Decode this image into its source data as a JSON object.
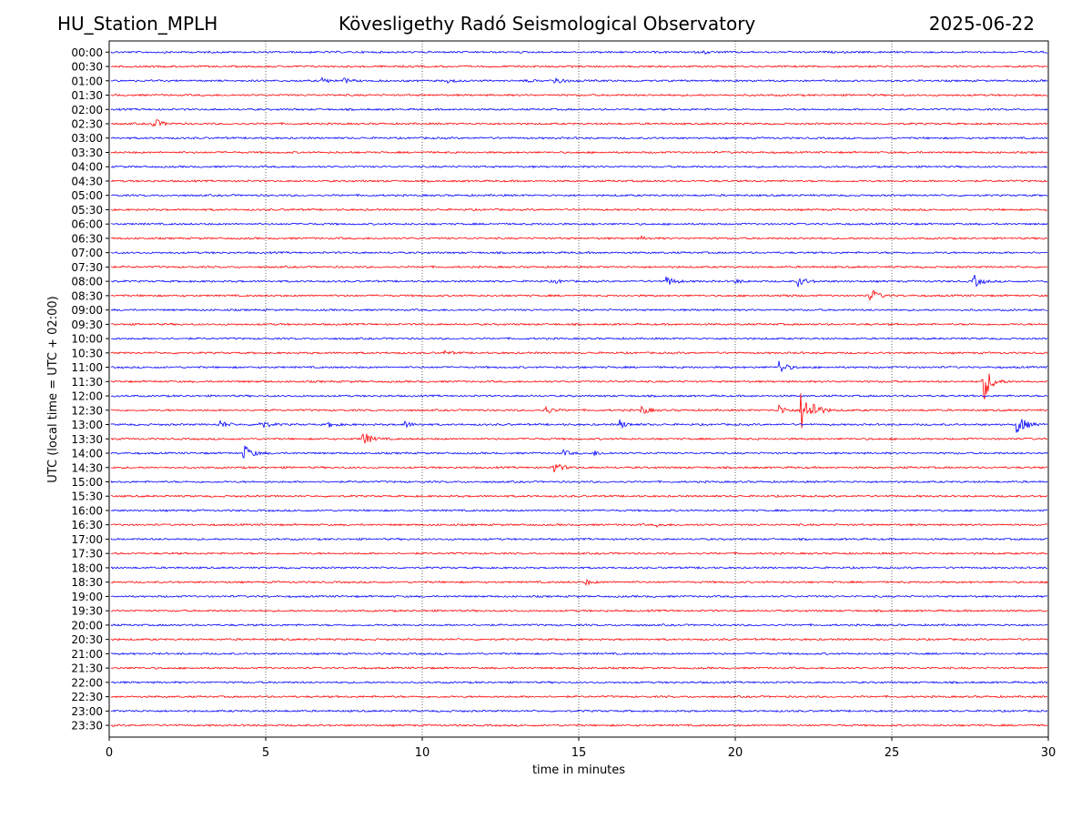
{
  "header": {
    "station": "HU_Station_MPLH",
    "observatory": "Kövesligethy Radó Seismological Observatory",
    "date": "2025-06-22"
  },
  "chart_data": {
    "type": "line",
    "title": "Kövesligethy Radó Seismological Observatory",
    "xlabel": "time in minutes",
    "ylabel": "UTC (local time = UTC + 02:00)",
    "xlim": [
      0,
      30
    ],
    "x_ticks": [
      0,
      5,
      10,
      15,
      20,
      25,
      30
    ],
    "vertical_gridlines_at": [
      5,
      10,
      15,
      20,
      25
    ],
    "grid": "vertical dotted",
    "row_labels": [
      "00:00",
      "00:30",
      "01:00",
      "01:30",
      "02:00",
      "02:30",
      "03:00",
      "03:30",
      "04:00",
      "04:30",
      "05:00",
      "05:30",
      "06:00",
      "06:30",
      "07:00",
      "07:30",
      "08:00",
      "08:30",
      "09:00",
      "09:30",
      "10:00",
      "10:30",
      "11:00",
      "11:30",
      "12:00",
      "12:30",
      "13:00",
      "13:30",
      "14:00",
      "14:30",
      "15:00",
      "15:30",
      "16:00",
      "16:30",
      "17:00",
      "17:30",
      "18:00",
      "18:30",
      "19:00",
      "19:30",
      "20:00",
      "20:30",
      "21:00",
      "21:30",
      "22:00",
      "22:30",
      "23:00",
      "23:30"
    ],
    "colors": [
      "#0000ff",
      "#ff0000"
    ],
    "events": [
      {
        "row": "00:00",
        "t": 19.0,
        "amp": 1.4
      },
      {
        "row": "01:00",
        "t": 6.8,
        "amp": 3
      },
      {
        "row": "01:00",
        "t": 7.5,
        "amp": 2.5
      },
      {
        "row": "01:00",
        "t": 10.8,
        "amp": 2
      },
      {
        "row": "01:00",
        "t": 13.3,
        "amp": 1.5
      },
      {
        "row": "01:00",
        "t": 14.2,
        "amp": 6
      },
      {
        "row": "02:30",
        "t": 1.4,
        "amp": 7
      },
      {
        "row": "06:30",
        "t": 17.0,
        "amp": 1.5
      },
      {
        "row": "08:00",
        "t": 14.2,
        "amp": 2.5
      },
      {
        "row": "08:00",
        "t": 17.8,
        "amp": 6
      },
      {
        "row": "08:00",
        "t": 20.0,
        "amp": 2
      },
      {
        "row": "08:00",
        "t": 22.0,
        "amp": 6
      },
      {
        "row": "08:00",
        "t": 27.6,
        "amp": 8
      },
      {
        "row": "08:30",
        "t": 24.3,
        "amp": 9
      },
      {
        "row": "08:30",
        "t": 21.5,
        "amp": 1.5
      },
      {
        "row": "10:30",
        "t": 10.7,
        "amp": 2
      },
      {
        "row": "11:00",
        "t": 21.4,
        "amp": 8
      },
      {
        "row": "11:30",
        "t": 27.9,
        "amp": 26
      },
      {
        "row": "12:30",
        "t": 13.9,
        "amp": 5
      },
      {
        "row": "12:30",
        "t": 17.0,
        "amp": 5
      },
      {
        "row": "12:30",
        "t": 21.4,
        "amp": 6
      },
      {
        "row": "12:30",
        "t": 22.1,
        "amp": 24
      },
      {
        "row": "12:30",
        "t": 22.5,
        "amp": 7
      },
      {
        "row": "13:00",
        "t": 3.5,
        "amp": 5
      },
      {
        "row": "13:00",
        "t": 4.8,
        "amp": 6
      },
      {
        "row": "13:00",
        "t": 7.0,
        "amp": 3
      },
      {
        "row": "13:00",
        "t": 9.4,
        "amp": 4
      },
      {
        "row": "13:00",
        "t": 16.3,
        "amp": 5
      },
      {
        "row": "13:00",
        "t": 29.0,
        "amp": 15
      },
      {
        "row": "13:30",
        "t": 8.1,
        "amp": 9
      },
      {
        "row": "14:00",
        "t": 4.3,
        "amp": 11
      },
      {
        "row": "14:00",
        "t": 14.5,
        "amp": 3
      },
      {
        "row": "14:00",
        "t": 15.5,
        "amp": 2.5
      },
      {
        "row": "14:30",
        "t": 14.2,
        "amp": 7
      },
      {
        "row": "16:30",
        "t": 17.5,
        "amp": 1.5
      },
      {
        "row": "18:30",
        "t": 15.2,
        "amp": 3
      }
    ]
  }
}
